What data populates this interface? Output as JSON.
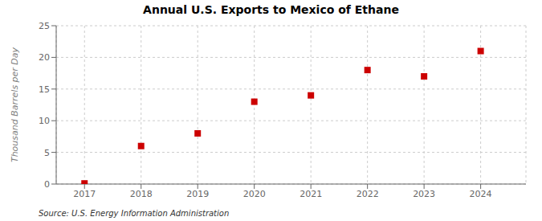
{
  "chart_data": {
    "type": "scatter",
    "title": "Annual U.S. Exports to Mexico of Ethane",
    "y_label": "Thousand Barrels per Day",
    "annotation": "Source: U.S. Energy Information Administration",
    "x": [
      2017,
      2018,
      2019,
      2020,
      2021,
      2022,
      2023,
      2024
    ],
    "values": [
      0.1,
      6.0,
      8.0,
      13.0,
      14.0,
      18.0,
      17.0,
      21.0
    ],
    "color": "#cc0000",
    "marker": "square",
    "xlim": [
      2016.5,
      2024.8
    ],
    "xticks": [
      2017,
      2018,
      2019,
      2020,
      2021,
      2022,
      2023,
      2024
    ],
    "ylim": [
      0,
      25
    ],
    "yticks": [
      0,
      5,
      10,
      15,
      20,
      25
    ],
    "grid": true
  }
}
